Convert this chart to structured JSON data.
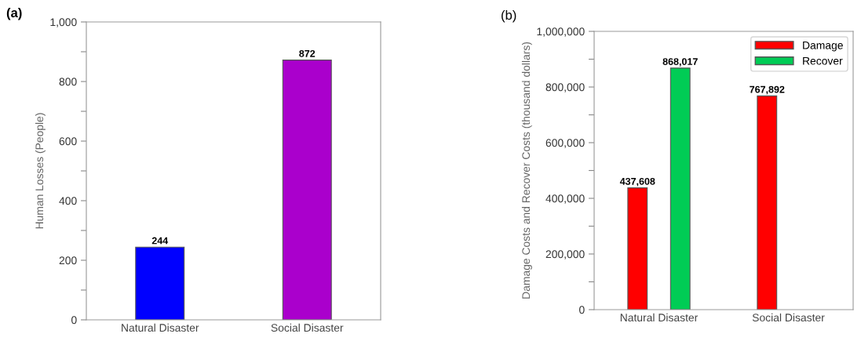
{
  "chart_data": [
    {
      "type": "bar",
      "title": "(a)",
      "ylabel": "Human Losses (People)",
      "categories": [
        "Natural Disaster",
        "Social Disaster"
      ],
      "values": [
        244,
        872
      ],
      "colors": [
        "#0000ff",
        "#aa00cc"
      ],
      "ylim": [
        0,
        1000
      ],
      "yticks": [
        0,
        {
          "value": 100,
          "label": null
        },
        200,
        {
          "value": 300,
          "label": null
        },
        400,
        {
          "value": 500,
          "label": null
        },
        600,
        {
          "value": 700,
          "label": null
        },
        800,
        {
          "value": 900,
          "label": null
        },
        {
          "value": 1000,
          "label": "1,000"
        }
      ],
      "data_labels": true,
      "grid": false,
      "legend": false
    },
    {
      "type": "bar",
      "title": "(b)",
      "ylabel": "Damage Costs and Recover Costs (thousand dollars)",
      "categories": [
        "Natural Disaster",
        "Social Disaster"
      ],
      "series": [
        {
          "name": "Damage",
          "color": "#ff0000",
          "values": [
            437608,
            767892
          ],
          "value_labels": [
            "437,608",
            "767,892"
          ]
        },
        {
          "name": "Recover",
          "color": "#00cc55",
          "values": [
            868017,
            null
          ],
          "value_labels": [
            "868,017",
            null
          ]
        }
      ],
      "ylim": [
        0,
        1000000
      ],
      "yticks": [
        {
          "value": 0,
          "label": "0"
        },
        {
          "value": 100000,
          "label": null
        },
        {
          "value": 200000,
          "label": "200,000"
        },
        {
          "value": 300000,
          "label": null
        },
        {
          "value": 400000,
          "label": "400,000"
        },
        {
          "value": 500000,
          "label": null
        },
        {
          "value": 600000,
          "label": "600,000"
        },
        {
          "value": 700000,
          "label": null
        },
        {
          "value": 800000,
          "label": "800,000"
        },
        {
          "value": 900000,
          "label": null
        },
        {
          "value": 1000000,
          "label": "1,000,000"
        }
      ],
      "grid": false,
      "legend": "top right"
    }
  ]
}
